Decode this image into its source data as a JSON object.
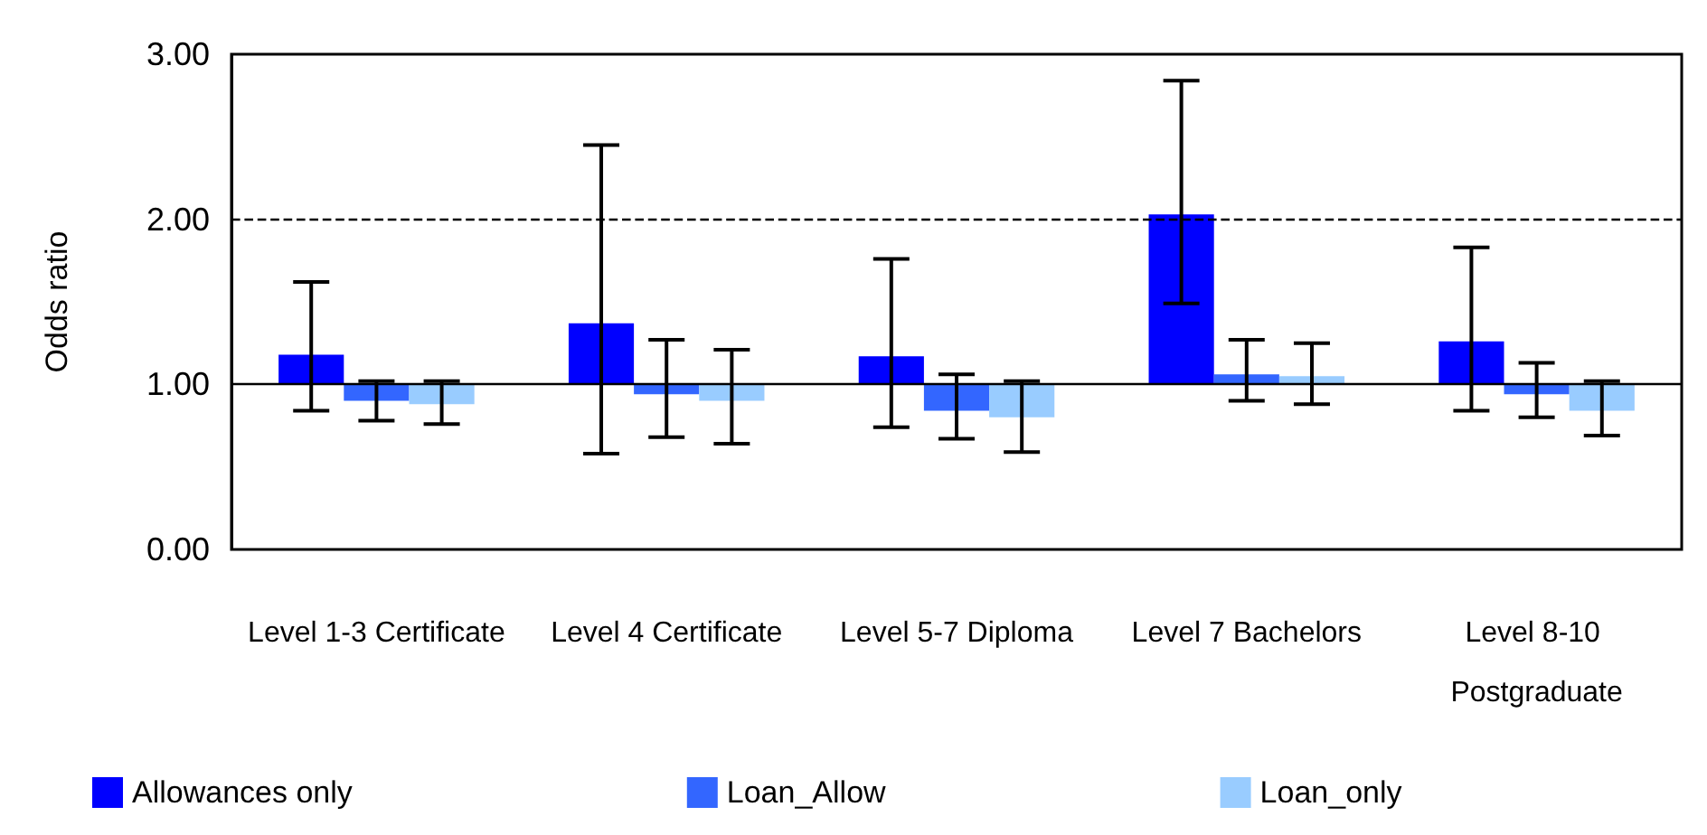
{
  "chart_data": {
    "type": "bar",
    "ylabel": "Odds ratio",
    "categories": [
      "Level 1-3 Certificate",
      "Level 4 Certificate",
      "Level 5-7 Diploma",
      "Level 7 Bachelors",
      "Level 8-10 Postgraduate"
    ],
    "series": [
      {
        "name": "Allowances only",
        "color": "#0000ff",
        "base": [
          1,
          1,
          1,
          1,
          1
        ],
        "values": [
          0.18,
          0.37,
          0.17,
          1.03,
          0.26
        ],
        "errors": [
          [
            0.84,
            1.62
          ],
          [
            0.58,
            2.45
          ],
          [
            0.74,
            1.76
          ],
          [
            1.49,
            2.84
          ],
          [
            0.84,
            1.83
          ]
        ]
      },
      {
        "name": "Loan_Allow",
        "color": "#3366ff",
        "base": [
          1,
          1,
          1,
          1,
          1
        ],
        "values": [
          -0.1,
          -0.06,
          -0.16,
          0.06,
          -0.06
        ],
        "errors": [
          [
            0.78,
            1.02
          ],
          [
            0.68,
            1.27
          ],
          [
            0.67,
            1.06
          ],
          [
            0.9,
            1.27
          ],
          [
            0.8,
            1.13
          ]
        ]
      },
      {
        "name": "Loan_only",
        "color": "#99ccff",
        "base": [
          1,
          1,
          1,
          1,
          1
        ],
        "values": [
          -0.12,
          -0.1,
          -0.2,
          0.05,
          -0.16
        ],
        "errors": [
          [
            0.76,
            1.02
          ],
          [
            0.64,
            1.21
          ],
          [
            0.59,
            1.02
          ],
          [
            0.88,
            1.25
          ],
          [
            0.69,
            1.02
          ]
        ]
      }
    ],
    "ylim": [
      0,
      3
    ],
    "yticks": [
      {
        "value": 0,
        "label": "0.00"
      },
      {
        "value": 1,
        "label": "1.00"
      },
      {
        "value": 2,
        "label": "2.00"
      },
      {
        "value": 3,
        "label": "3.00"
      }
    ],
    "ref_lines": [
      {
        "axis": "y",
        "value": 1,
        "label": null,
        "color": "#000000",
        "line_style": "solid"
      },
      {
        "axis": "y",
        "value": 2,
        "label": null,
        "color": "#000000",
        "line_style": "dashed"
      }
    ],
    "grid": false,
    "legend": "bottom left"
  }
}
